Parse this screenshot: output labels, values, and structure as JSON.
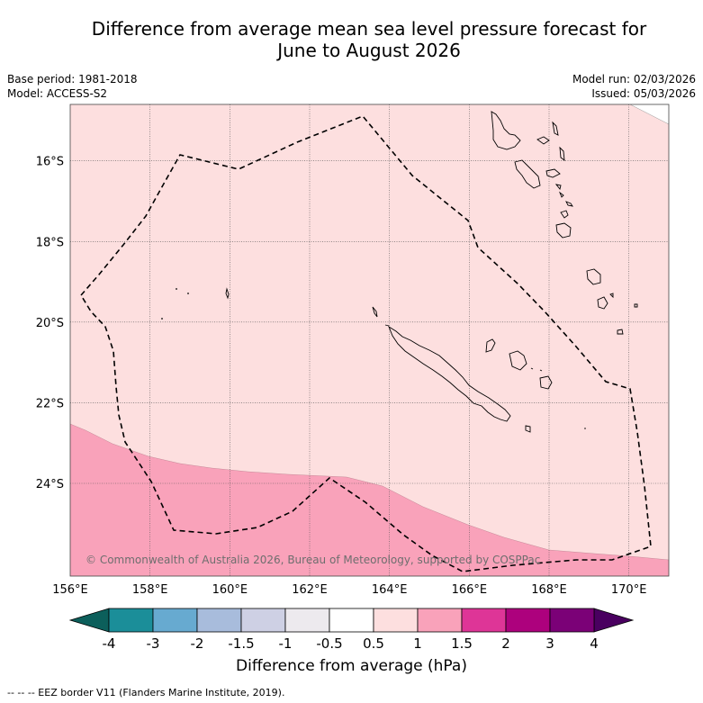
{
  "header": {
    "title_line1": "Difference from average mean sea level pressure forecast for",
    "title_line2": "June to August 2026",
    "base_period": "Base period: 1981-2018",
    "model": "Model: ACCESS-S2",
    "model_run": "Model run: 02/03/2026",
    "issued": "Issued: 05/03/2026"
  },
  "map": {
    "lon_range": [
      156,
      171
    ],
    "lat_range": [
      -26.3,
      -14.6
    ],
    "lon_ticks": [
      {
        "value": 156,
        "label": "156°E"
      },
      {
        "value": 158,
        "label": "158°E"
      },
      {
        "value": 160,
        "label": "160°E"
      },
      {
        "value": 162,
        "label": "162°E"
      },
      {
        "value": 164,
        "label": "164°E"
      },
      {
        "value": 166,
        "label": "166°E"
      },
      {
        "value": 168,
        "label": "168°E"
      },
      {
        "value": 170,
        "label": "170°E"
      }
    ],
    "lat_ticks": [
      {
        "value": -16,
        "label": "16°S"
      },
      {
        "value": -18,
        "label": "18°S"
      },
      {
        "value": -20,
        "label": "20°S"
      },
      {
        "value": -22,
        "label": "22°S"
      },
      {
        "value": -24,
        "label": "24°S"
      }
    ],
    "regions": [
      {
        "name": "anomaly 0.5 to 1 hPa",
        "color": "#fddfdf"
      },
      {
        "name": "anomaly 1 to 1.5 hPa",
        "color": "#f9a2ba"
      }
    ],
    "copyright": "© Commonwealth of Australia 2026, Bureau of Meteorology, supported by COSPPac"
  },
  "colorbar": {
    "ticks": [
      "-4",
      "-3",
      "-2",
      "-1.5",
      "-1",
      "-0.5",
      "0.5",
      "1",
      "1.5",
      "2",
      "3",
      "4"
    ],
    "colors": [
      "#1b8e99",
      "#67aad0",
      "#a8bcdc",
      "#ced0e4",
      "#edeaee",
      "#ffffff",
      "#fddfdf",
      "#f9a2ba",
      "#de3597",
      "#ad017d",
      "#7b0177"
    ],
    "under_color": "#0c5f5b",
    "over_color": "#4a0060",
    "label": "Difference from average (hPa)"
  },
  "footnote": "--  --  -- EEZ border V11 (Flanders Marine Institute, 2019)."
}
